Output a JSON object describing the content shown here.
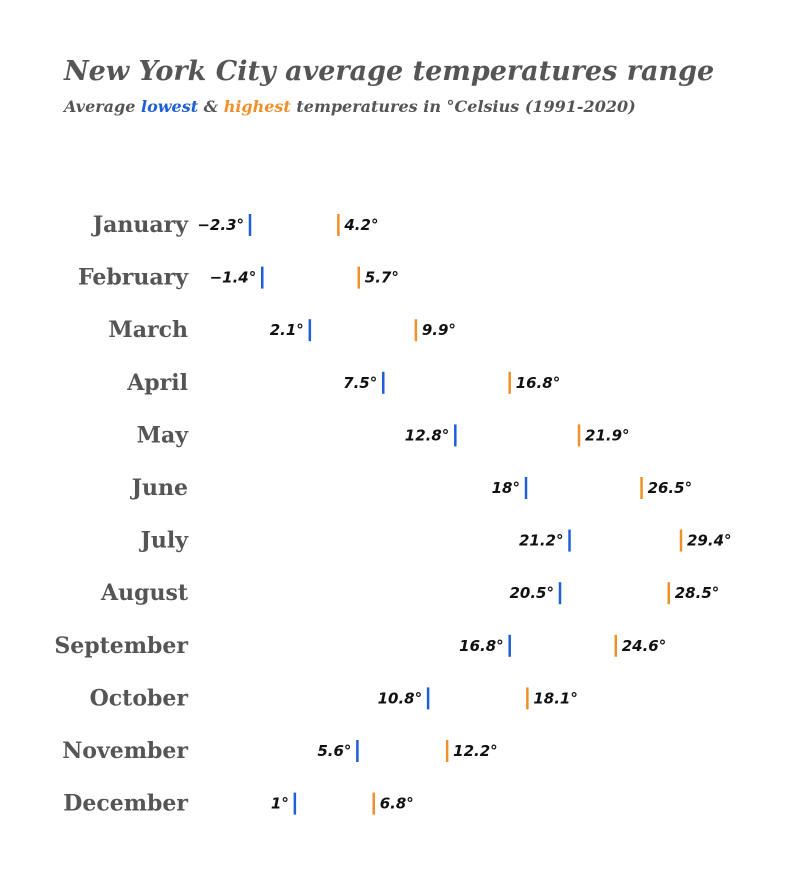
{
  "header": {
    "title": "New York City average temperatures range",
    "subtitle_prefix": "Average ",
    "subtitle_low": "lowest",
    "subtitle_mid": " & ",
    "subtitle_high": "highest",
    "subtitle_suffix": " temperatures in °Celsius (1991-2020)"
  },
  "colors": {
    "low": "#1f5fd6",
    "high": "#f0902a",
    "label": "#555555",
    "value": "#111111"
  },
  "chart_data": {
    "type": "range",
    "title": "New York City average temperatures range",
    "subtitle": "Average lowest & highest temperatures in °Celsius (1991-2020)",
    "categories": [
      "January",
      "February",
      "March",
      "April",
      "May",
      "June",
      "July",
      "August",
      "September",
      "October",
      "November",
      "December"
    ],
    "series": [
      {
        "name": "lowest",
        "values": [
          -2.3,
          -1.4,
          2.1,
          7.5,
          12.8,
          18,
          21.2,
          20.5,
          16.8,
          10.8,
          5.6,
          1
        ]
      },
      {
        "name": "highest",
        "values": [
          4.2,
          5.7,
          9.9,
          16.8,
          21.9,
          26.5,
          29.4,
          28.5,
          24.6,
          18.1,
          12.2,
          6.8
        ]
      }
    ],
    "value_labels_low": [
      "−2.3°",
      "−1.4°",
      "2.1°",
      "7.5°",
      "12.8°",
      "18°",
      "21.2°",
      "20.5°",
      "16.8°",
      "10.8°",
      "5.6°",
      "1°"
    ],
    "value_labels_high": [
      "4.2°",
      "5.7°",
      "9.9°",
      "16.8°",
      "21.9°",
      "26.5°",
      "29.4°",
      "28.5°",
      "24.6°",
      "18.1°",
      "12.2°",
      "6.8°"
    ],
    "xlim": [
      -2.3,
      29.4
    ],
    "grid": false,
    "legend": "none"
  }
}
